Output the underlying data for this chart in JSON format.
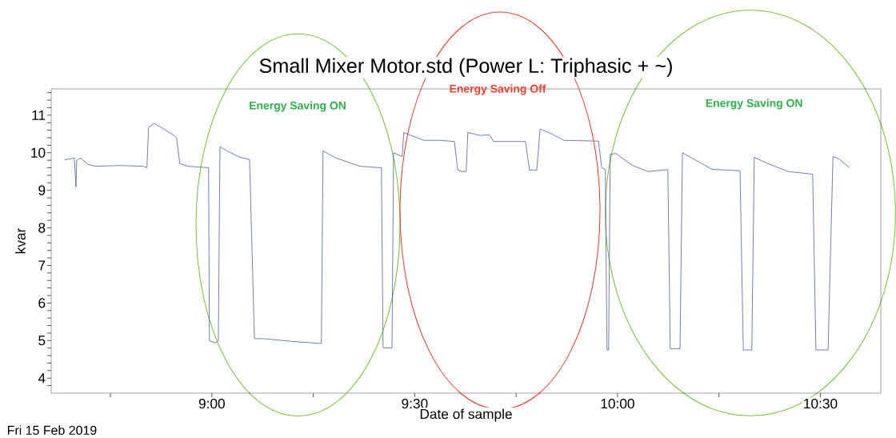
{
  "chart_data": {
    "type": "line",
    "title": "Small Mixer Motor.std (Power L: Triphasic + ~)",
    "xlabel": "Date of sample",
    "ylabel": "kvar",
    "annotations": [
      "Energy Saving ON",
      "Energy Saving Off",
      "Energy Saving ON",
      "Fri 15 Feb 2019"
    ],
    "xlim": [
      8.604,
      10.649
    ],
    "ylim": [
      3.6,
      11.7
    ],
    "xticks": [
      {
        "value": 8.75,
        "label": null
      },
      {
        "value": 9,
        "label": "9:00"
      },
      {
        "value": 9.25,
        "label": null
      },
      {
        "value": 9.5,
        "label": "9:30"
      },
      {
        "value": 9.75,
        "label": null
      },
      {
        "value": 10,
        "label": "10:00"
      },
      {
        "value": 10.25,
        "label": null
      },
      {
        "value": 10.5,
        "label": "10:30"
      }
    ],
    "yticks": [
      {
        "value": 3.8,
        "label": null
      },
      4,
      {
        "value": 4.2,
        "label": null
      },
      {
        "value": 4.4,
        "label": null
      },
      {
        "value": 4.6,
        "label": null
      },
      {
        "value": 4.8,
        "label": null
      },
      5,
      {
        "value": 5.2,
        "label": null
      },
      {
        "value": 5.4,
        "label": null
      },
      {
        "value": 5.6,
        "label": null
      },
      {
        "value": 5.8,
        "label": null
      },
      6,
      {
        "value": 6.2,
        "label": null
      },
      {
        "value": 6.4,
        "label": null
      },
      {
        "value": 6.6,
        "label": null
      },
      {
        "value": 6.8,
        "label": null
      },
      7,
      {
        "value": 7.2,
        "label": null
      },
      {
        "value": 7.4,
        "label": null
      },
      {
        "value": 7.6,
        "label": null
      },
      {
        "value": 7.8,
        "label": null
      },
      8,
      {
        "value": 8.2,
        "label": null
      },
      {
        "value": 8.4,
        "label": null
      },
      {
        "value": 8.6,
        "label": null
      },
      {
        "value": 8.8,
        "label": null
      },
      9,
      {
        "value": 9.2,
        "label": null
      },
      {
        "value": 9.4,
        "label": null
      },
      {
        "value": 9.6,
        "label": null
      },
      {
        "value": 9.8,
        "label": null
      },
      10,
      {
        "value": 10.2,
        "label": null
      },
      {
        "value": 10.4,
        "label": null
      },
      {
        "value": 10.6,
        "label": null
      },
      {
        "value": 10.8,
        "label": null
      },
      11,
      {
        "value": 11.2,
        "label": null
      },
      {
        "value": 11.4,
        "label": null
      },
      {
        "value": 11.6,
        "label": null
      }
    ],
    "grid": false,
    "marker": "none",
    "line_style": "solid",
    "series": [
      {
        "color": "#3a4fa0",
        "x": [
          8.637,
          8.661,
          8.665,
          8.667,
          8.677,
          8.694,
          8.714,
          8.773,
          8.832,
          8.84,
          8.844,
          8.858,
          8.882,
          8.907,
          8.913,
          8.921,
          8.941,
          8.992,
          8.994,
          9.01,
          9.016,
          9.02,
          9.034,
          9.069,
          9.093,
          9.105,
          9.128,
          9.207,
          9.27,
          9.274,
          9.306,
          9.365,
          9.418,
          9.422,
          9.444,
          9.448,
          9.469,
          9.473,
          9.493,
          9.523,
          9.562,
          9.598,
          9.606,
          9.617,
          9.627,
          9.631,
          9.661,
          9.684,
          9.694,
          9.773,
          9.783,
          9.801,
          9.809,
          9.838,
          9.868,
          9.953,
          9.961,
          9.97,
          9.974,
          9.978,
          9.982,
          9.996,
          10.036,
          10.075,
          10.124,
          10.13,
          10.154,
          10.16,
          10.193,
          10.233,
          10.302,
          10.31,
          10.331,
          10.337,
          10.371,
          10.42,
          10.481,
          10.489,
          10.519,
          10.531,
          10.548,
          10.572
        ],
        "values": [
          9.81,
          9.86,
          9.09,
          9.8,
          9.86,
          9.69,
          9.64,
          9.66,
          9.64,
          9.6,
          10.67,
          10.78,
          10.63,
          10.46,
          10.4,
          9.71,
          9.64,
          9.6,
          4.99,
          4.94,
          5.0,
          10.16,
          10.07,
          9.88,
          9.82,
          5.05,
          5.05,
          4.97,
          4.92,
          10.05,
          9.86,
          9.64,
          9.6,
          4.81,
          4.8,
          10.0,
          9.9,
          10.54,
          10.45,
          10.33,
          10.33,
          10.3,
          9.54,
          9.5,
          9.5,
          10.54,
          10.46,
          10.48,
          10.3,
          10.3,
          9.54,
          9.54,
          10.63,
          10.5,
          10.33,
          10.31,
          9.6,
          9.55,
          4.75,
          4.75,
          9.96,
          9.98,
          9.67,
          9.5,
          9.55,
          4.78,
          4.78,
          10.0,
          9.8,
          9.56,
          9.52,
          4.75,
          4.75,
          9.88,
          9.71,
          9.5,
          9.43,
          4.75,
          4.75,
          9.9,
          9.82,
          9.6
        ]
      }
    ]
  }
}
